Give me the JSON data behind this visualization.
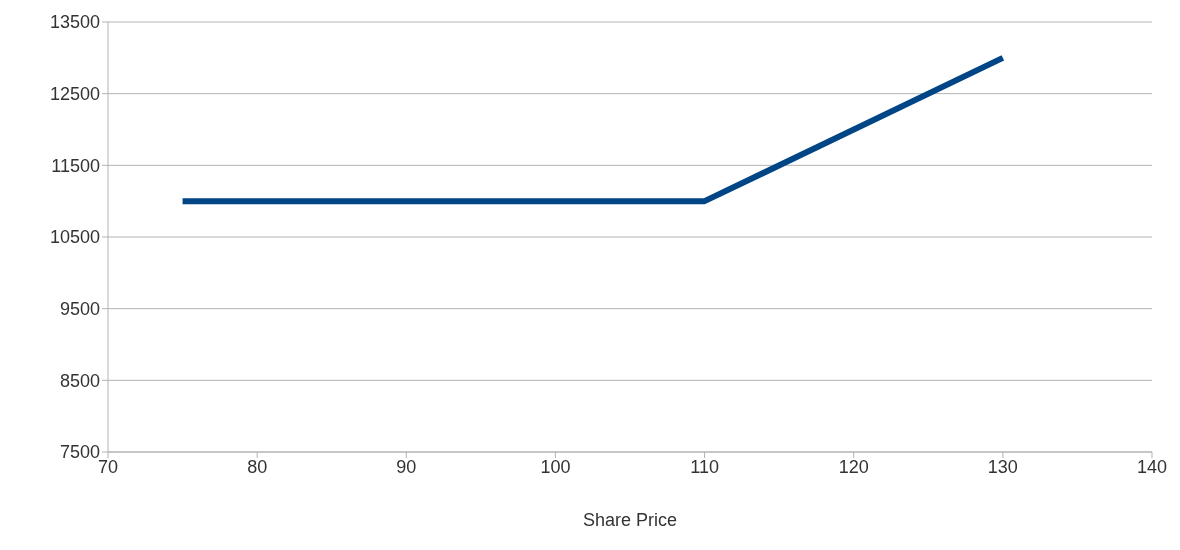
{
  "chart_data": {
    "type": "line",
    "xlabel": "Share Price",
    "x": [
      75,
      110,
      130
    ],
    "series": [
      {
        "color": "#004586",
        "values": [
          11000,
          11000,
          13000
        ]
      }
    ],
    "xlim": [
      70,
      140
    ],
    "xticks": [
      70,
      80,
      90,
      100,
      110,
      120,
      130,
      140
    ],
    "ylim": [
      7500,
      13500
    ],
    "yticks": [
      7500,
      8500,
      9500,
      10500,
      11500,
      12500,
      13500
    ],
    "grid": "y",
    "legend": false
  }
}
